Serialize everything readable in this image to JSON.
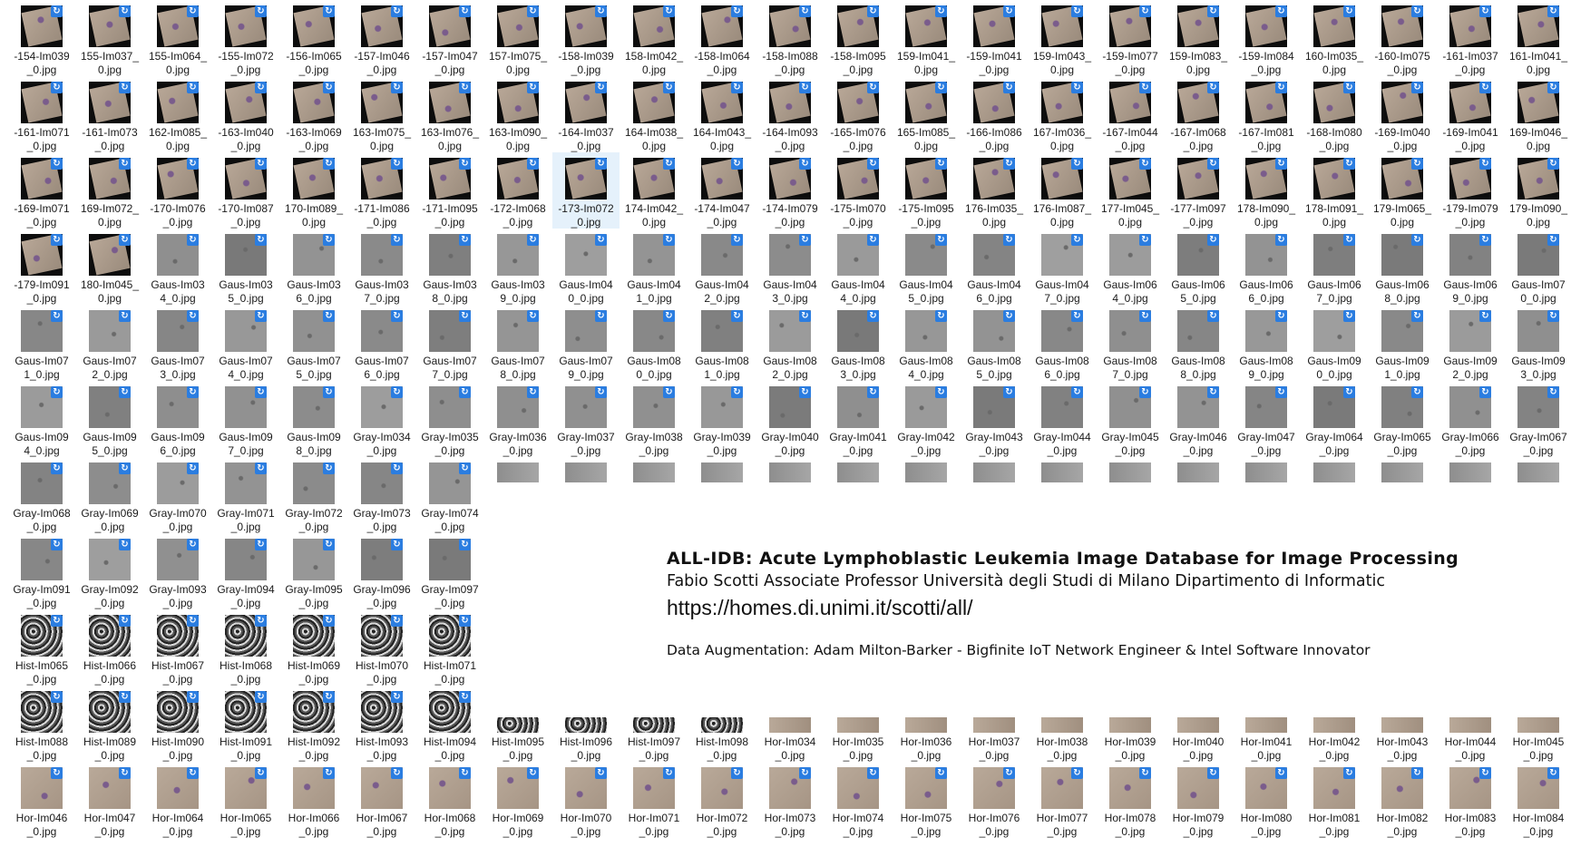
{
  "files": [
    {
      "label": "-154-Im039\n_0.jpg",
      "style": "rot"
    },
    {
      "label": "155-Im037_\n0.jpg",
      "style": "rot"
    },
    {
      "label": "155-Im064_\n0.jpg",
      "style": "rot"
    },
    {
      "label": "-155-Im072\n_0.jpg",
      "style": "rot"
    },
    {
      "label": "-156-Im065\n_0.jpg",
      "style": "rot"
    },
    {
      "label": "-157-Im046\n_0.jpg",
      "style": "rot"
    },
    {
      "label": "-157-Im047\n_0.jpg",
      "style": "rot"
    },
    {
      "label": "157-Im075_\n0.jpg",
      "style": "rot"
    },
    {
      "label": "-158-Im039\n_0.jpg",
      "style": "rot"
    },
    {
      "label": "158-Im042_\n0.jpg",
      "style": "rot"
    },
    {
      "label": "-158-Im064\n_0.jpg",
      "style": "rot"
    },
    {
      "label": "-158-Im088\n_0.jpg",
      "style": "rot"
    },
    {
      "label": "-158-Im095\n_0.jpg",
      "style": "rot"
    },
    {
      "label": "159-Im041_\n0.jpg",
      "style": "rot"
    },
    {
      "label": "-159-Im041\n_0.jpg",
      "style": "rot"
    },
    {
      "label": "159-Im043_\n0.jpg",
      "style": "rot"
    },
    {
      "label": "-159-Im077\n_0.jpg",
      "style": "rot"
    },
    {
      "label": "159-Im083_\n0.jpg",
      "style": "rot"
    },
    {
      "label": "-159-Im084\n_0.jpg",
      "style": "rot"
    },
    {
      "label": "160-Im035_\n0.jpg",
      "style": "rot"
    },
    {
      "label": "-160-Im075\n_0.jpg",
      "style": "rot"
    },
    {
      "label": "-161-Im037\n_0.jpg",
      "style": "rot"
    },
    {
      "label": "161-Im041_\n0.jpg",
      "style": "rot"
    },
    {
      "label": "-161-Im071\n_0.jpg",
      "style": "rot"
    },
    {
      "label": "-161-Im073\n_0.jpg",
      "style": "rot"
    },
    {
      "label": "162-Im085_\n0.jpg",
      "style": "rot"
    },
    {
      "label": "-163-Im040\n_0.jpg",
      "style": "rot"
    },
    {
      "label": "-163-Im069\n_0.jpg",
      "style": "rot"
    },
    {
      "label": "163-Im075_\n0.jpg",
      "style": "rot"
    },
    {
      "label": "163-Im076_\n0.jpg",
      "style": "rot"
    },
    {
      "label": "163-Im090_\n0.jpg",
      "style": "rot"
    },
    {
      "label": "-164-Im037\n_0.jpg",
      "style": "rot"
    },
    {
      "label": "164-Im038_\n0.jpg",
      "style": "rot"
    },
    {
      "label": "164-Im043_\n0.jpg",
      "style": "rot"
    },
    {
      "label": "-164-Im093\n_0.jpg",
      "style": "rot"
    },
    {
      "label": "-165-Im076\n_0.jpg",
      "style": "rot"
    },
    {
      "label": "165-Im085_\n0.jpg",
      "style": "rot"
    },
    {
      "label": "-166-Im086\n_0.jpg",
      "style": "rot"
    },
    {
      "label": "167-Im036_\n0.jpg",
      "style": "rot"
    },
    {
      "label": "-167-Im044\n_0.jpg",
      "style": "rot"
    },
    {
      "label": "-167-Im068\n_0.jpg",
      "style": "rot"
    },
    {
      "label": "-167-Im081\n_0.jpg",
      "style": "rot"
    },
    {
      "label": "-168-Im080\n_0.jpg",
      "style": "rot"
    },
    {
      "label": "-169-Im040\n_0.jpg",
      "style": "rot"
    },
    {
      "label": "-169-Im041\n_0.jpg",
      "style": "rot"
    },
    {
      "label": "169-Im046_\n0.jpg",
      "style": "rot"
    },
    {
      "label": "-169-Im071\n_0.jpg",
      "style": "rot"
    },
    {
      "label": "169-Im072_\n0.jpg",
      "style": "rot"
    },
    {
      "label": "-170-Im076\n_0.jpg",
      "style": "rot"
    },
    {
      "label": "-170-Im087\n_0.jpg",
      "style": "rot"
    },
    {
      "label": "170-Im089_\n0.jpg",
      "style": "rot"
    },
    {
      "label": "-171-Im086\n_0.jpg",
      "style": "rot"
    },
    {
      "label": "-171-Im095\n_0.jpg",
      "style": "rot"
    },
    {
      "label": "-172-Im068\n_0.jpg",
      "style": "rot"
    },
    {
      "label": "-173-Im072\n_0.jpg",
      "style": "rot",
      "selected": true
    },
    {
      "label": "174-Im042_\n0.jpg",
      "style": "rot"
    },
    {
      "label": "-174-Im047\n_0.jpg",
      "style": "rot"
    },
    {
      "label": "-174-Im079\n_0.jpg",
      "style": "rot"
    },
    {
      "label": "-175-Im070\n_0.jpg",
      "style": "rot"
    },
    {
      "label": "-175-Im095\n_0.jpg",
      "style": "rot"
    },
    {
      "label": "176-Im035_\n0.jpg",
      "style": "rot"
    },
    {
      "label": "176-Im087_\n0.jpg",
      "style": "rot"
    },
    {
      "label": "177-Im045_\n0.jpg",
      "style": "rot"
    },
    {
      "label": "-177-Im097\n_0.jpg",
      "style": "rot"
    },
    {
      "label": "178-Im090_\n0.jpg",
      "style": "rot"
    },
    {
      "label": "178-Im091_\n0.jpg",
      "style": "rot"
    },
    {
      "label": "179-Im065_\n0.jpg",
      "style": "rot"
    },
    {
      "label": "-179-Im079\n_0.jpg",
      "style": "rot"
    },
    {
      "label": "179-Im090_\n0.jpg",
      "style": "rot"
    },
    {
      "label": "-179-Im091\n_0.jpg",
      "style": "rot"
    },
    {
      "label": "180-Im045_\n0.jpg",
      "style": "rot"
    },
    {
      "label": "Gaus-Im03\n4_0.jpg",
      "style": "gray"
    },
    {
      "label": "Gaus-Im03\n5_0.jpg",
      "style": "gray"
    },
    {
      "label": "Gaus-Im03\n6_0.jpg",
      "style": "gray"
    },
    {
      "label": "Gaus-Im03\n7_0.jpg",
      "style": "gray"
    },
    {
      "label": "Gaus-Im03\n8_0.jpg",
      "style": "gray"
    },
    {
      "label": "Gaus-Im03\n9_0.jpg",
      "style": "gray"
    },
    {
      "label": "Gaus-Im04\n0_0.jpg",
      "style": "gray"
    },
    {
      "label": "Gaus-Im04\n1_0.jpg",
      "style": "gray"
    },
    {
      "label": "Gaus-Im04\n2_0.jpg",
      "style": "gray"
    },
    {
      "label": "Gaus-Im04\n3_0.jpg",
      "style": "gray"
    },
    {
      "label": "Gaus-Im04\n4_0.jpg",
      "style": "gray"
    },
    {
      "label": "Gaus-Im04\n5_0.jpg",
      "style": "gray"
    },
    {
      "label": "Gaus-Im04\n6_0.jpg",
      "style": "gray"
    },
    {
      "label": "Gaus-Im04\n7_0.jpg",
      "style": "gray"
    },
    {
      "label": "Gaus-Im06\n4_0.jpg",
      "style": "gray"
    },
    {
      "label": "Gaus-Im06\n5_0.jpg",
      "style": "gray"
    },
    {
      "label": "Gaus-Im06\n6_0.jpg",
      "style": "gray"
    },
    {
      "label": "Gaus-Im06\n7_0.jpg",
      "style": "gray"
    },
    {
      "label": "Gaus-Im06\n8_0.jpg",
      "style": "gray"
    },
    {
      "label": "Gaus-Im06\n9_0.jpg",
      "style": "gray"
    },
    {
      "label": "Gaus-Im07\n0_0.jpg",
      "style": "gray"
    },
    {
      "label": "Gaus-Im07\n1_0.jpg",
      "style": "gray"
    },
    {
      "label": "Gaus-Im07\n2_0.jpg",
      "style": "gray"
    },
    {
      "label": "Gaus-Im07\n3_0.jpg",
      "style": "gray"
    },
    {
      "label": "Gaus-Im07\n4_0.jpg",
      "style": "gray"
    },
    {
      "label": "Gaus-Im07\n5_0.jpg",
      "style": "gray"
    },
    {
      "label": "Gaus-Im07\n6_0.jpg",
      "style": "gray"
    },
    {
      "label": "Gaus-Im07\n7_0.jpg",
      "style": "gray"
    },
    {
      "label": "Gaus-Im07\n8_0.jpg",
      "style": "gray"
    },
    {
      "label": "Gaus-Im07\n9_0.jpg",
      "style": "gray"
    },
    {
      "label": "Gaus-Im08\n0_0.jpg",
      "style": "gray"
    },
    {
      "label": "Gaus-Im08\n1_0.jpg",
      "style": "gray"
    },
    {
      "label": "Gaus-Im08\n2_0.jpg",
      "style": "gray"
    },
    {
      "label": "Gaus-Im08\n3_0.jpg",
      "style": "gray"
    },
    {
      "label": "Gaus-Im08\n4_0.jpg",
      "style": "gray"
    },
    {
      "label": "Gaus-Im08\n5_0.jpg",
      "style": "gray"
    },
    {
      "label": "Gaus-Im08\n6_0.jpg",
      "style": "gray"
    },
    {
      "label": "Gaus-Im08\n7_0.jpg",
      "style": "gray"
    },
    {
      "label": "Gaus-Im08\n8_0.jpg",
      "style": "gray"
    },
    {
      "label": "Gaus-Im08\n9_0.jpg",
      "style": "gray"
    },
    {
      "label": "Gaus-Im09\n0_0.jpg",
      "style": "gray"
    },
    {
      "label": "Gaus-Im09\n1_0.jpg",
      "style": "gray"
    },
    {
      "label": "Gaus-Im09\n2_0.jpg",
      "style": "gray"
    },
    {
      "label": "Gaus-Im09\n3_0.jpg",
      "style": "gray"
    },
    {
      "label": "Gaus-Im09\n4_0.jpg",
      "style": "gray"
    },
    {
      "label": "Gaus-Im09\n5_0.jpg",
      "style": "gray"
    },
    {
      "label": "Gaus-Im09\n6_0.jpg",
      "style": "gray"
    },
    {
      "label": "Gaus-Im09\n7_0.jpg",
      "style": "gray"
    },
    {
      "label": "Gaus-Im09\n8_0.jpg",
      "style": "gray"
    },
    {
      "label": "Gray-Im034\n_0.jpg",
      "style": "gray"
    },
    {
      "label": "Gray-Im035\n_0.jpg",
      "style": "gray"
    },
    {
      "label": "Gray-Im036\n_0.jpg",
      "style": "gray"
    },
    {
      "label": "Gray-Im037\n_0.jpg",
      "style": "gray"
    },
    {
      "label": "Gray-Im038\n_0.jpg",
      "style": "gray"
    },
    {
      "label": "Gray-Im039\n_0.jpg",
      "style": "gray"
    },
    {
      "label": "Gray-Im040\n_0.jpg",
      "style": "gray"
    },
    {
      "label": "Gray-Im041\n_0.jpg",
      "style": "gray"
    },
    {
      "label": "Gray-Im042\n_0.jpg",
      "style": "gray"
    },
    {
      "label": "Gray-Im043\n_0.jpg",
      "style": "gray"
    },
    {
      "label": "Gray-Im044\n_0.jpg",
      "style": "gray"
    },
    {
      "label": "Gray-Im045\n_0.jpg",
      "style": "gray"
    },
    {
      "label": "Gray-Im046\n_0.jpg",
      "style": "gray"
    },
    {
      "label": "Gray-Im047\n_0.jpg",
      "style": "gray"
    },
    {
      "label": "Gray-Im064\n_0.jpg",
      "style": "gray"
    },
    {
      "label": "Gray-Im065\n_0.jpg",
      "style": "gray"
    },
    {
      "label": "Gray-Im066\n_0.jpg",
      "style": "gray"
    },
    {
      "label": "Gray-Im067\n_0.jpg",
      "style": "gray"
    },
    {
      "label": "Gray-Im068\n_0.jpg",
      "style": "gray"
    },
    {
      "label": "Gray-Im069\n_0.jpg",
      "style": "gray"
    },
    {
      "label": "Gray-Im070\n_0.jpg",
      "style": "gray"
    },
    {
      "label": "Gray-Im071\n_0.jpg",
      "style": "gray"
    },
    {
      "label": "Gray-Im072\n_0.jpg",
      "style": "gray"
    },
    {
      "label": "Gray-Im073\n_0.jpg",
      "style": "gray"
    },
    {
      "label": "Gray-Im074\n_0.jpg",
      "style": "gray"
    },
    {
      "label": "",
      "style": "short"
    },
    {
      "label": "",
      "style": "short"
    },
    {
      "label": "",
      "style": "short"
    },
    {
      "label": "",
      "style": "short"
    },
    {
      "label": "",
      "style": "short"
    },
    {
      "label": "",
      "style": "short"
    },
    {
      "label": "",
      "style": "short"
    },
    {
      "label": "",
      "style": "short"
    },
    {
      "label": "",
      "style": "short"
    },
    {
      "label": "",
      "style": "short"
    },
    {
      "label": "",
      "style": "short"
    },
    {
      "label": "",
      "style": "short"
    },
    {
      "label": "",
      "style": "short"
    },
    {
      "label": "",
      "style": "short"
    },
    {
      "label": "",
      "style": "short"
    },
    {
      "label": "",
      "style": "short"
    },
    {
      "label": "Gray-Im091\n_0.jpg",
      "style": "gray"
    },
    {
      "label": "Gray-Im092\n_0.jpg",
      "style": "gray"
    },
    {
      "label": "Gray-Im093\n_0.jpg",
      "style": "gray"
    },
    {
      "label": "Gray-Im094\n_0.jpg",
      "style": "gray"
    },
    {
      "label": "Gray-Im095\n_0.jpg",
      "style": "gray"
    },
    {
      "label": "Gray-Im096\n_0.jpg",
      "style": "gray"
    },
    {
      "label": "Gray-Im097\n_0.jpg",
      "style": "gray"
    },
    {
      "label": "Hist-Im065\n_0.jpg",
      "style": "hist"
    },
    {
      "label": "Hist-Im066\n_0.jpg",
      "style": "hist"
    },
    {
      "label": "Hist-Im067\n_0.jpg",
      "style": "hist"
    },
    {
      "label": "Hist-Im068\n_0.jpg",
      "style": "hist"
    },
    {
      "label": "Hist-Im069\n_0.jpg",
      "style": "hist"
    },
    {
      "label": "Hist-Im070\n_0.jpg",
      "style": "hist"
    },
    {
      "label": "Hist-Im071\n_0.jpg",
      "style": "hist"
    },
    {
      "label": "Hist-Im088\n_0.jpg",
      "style": "hist"
    },
    {
      "label": "Hist-Im089\n_0.jpg",
      "style": "hist"
    },
    {
      "label": "Hist-Im090\n_0.jpg",
      "style": "hist"
    },
    {
      "label": "Hist-Im091\n_0.jpg",
      "style": "hist"
    },
    {
      "label": "Hist-Im092\n_0.jpg",
      "style": "hist"
    },
    {
      "label": "Hist-Im093\n_0.jpg",
      "style": "hist"
    },
    {
      "label": "Hist-Im094\n_0.jpg",
      "style": "hist"
    },
    {
      "label": "Hist-Im095\n_0.jpg",
      "style": "histwide"
    },
    {
      "label": "Hist-Im096\n_0.jpg",
      "style": "histwide"
    },
    {
      "label": "Hist-Im097\n_0.jpg",
      "style": "histwide"
    },
    {
      "label": "Hist-Im098\n_0.jpg",
      "style": "histwide"
    },
    {
      "label": "Hor-Im034\n_0.jpg",
      "style": "horwide"
    },
    {
      "label": "Hor-Im035\n_0.jpg",
      "style": "horwide"
    },
    {
      "label": "Hor-Im036\n_0.jpg",
      "style": "horwide"
    },
    {
      "label": "Hor-Im037\n_0.jpg",
      "style": "horwide"
    },
    {
      "label": "Hor-Im038\n_0.jpg",
      "style": "horwide"
    },
    {
      "label": "Hor-Im039\n_0.jpg",
      "style": "horwide"
    },
    {
      "label": "Hor-Im040\n_0.jpg",
      "style": "horwide"
    },
    {
      "label": "Hor-Im041\n_0.jpg",
      "style": "horwide"
    },
    {
      "label": "Hor-Im042\n_0.jpg",
      "style": "horwide"
    },
    {
      "label": "Hor-Im043\n_0.jpg",
      "style": "horwide"
    },
    {
      "label": "Hor-Im044\n_0.jpg",
      "style": "horwide"
    },
    {
      "label": "Hor-Im045\n_0.jpg",
      "style": "horwide"
    },
    {
      "label": "Hor-Im046\n_0.jpg",
      "style": "hor"
    },
    {
      "label": "Hor-Im047\n_0.jpg",
      "style": "hor"
    },
    {
      "label": "Hor-Im064\n_0.jpg",
      "style": "hor"
    },
    {
      "label": "Hor-Im065\n_0.jpg",
      "style": "hor"
    },
    {
      "label": "Hor-Im066\n_0.jpg",
      "style": "hor"
    },
    {
      "label": "Hor-Im067\n_0.jpg",
      "style": "hor"
    },
    {
      "label": "Hor-Im068\n_0.jpg",
      "style": "hor"
    },
    {
      "label": "Hor-Im069\n_0.jpg",
      "style": "hor"
    },
    {
      "label": "Hor-Im070\n_0.jpg",
      "style": "hor"
    },
    {
      "label": "Hor-Im071\n_0.jpg",
      "style": "hor"
    },
    {
      "label": "Hor-Im072\n_0.jpg",
      "style": "hor"
    },
    {
      "label": "Hor-Im073\n_0.jpg",
      "style": "hor"
    },
    {
      "label": "Hor-Im074\n_0.jpg",
      "style": "hor"
    },
    {
      "label": "Hor-Im075\n_0.jpg",
      "style": "hor"
    },
    {
      "label": "Hor-Im076\n_0.jpg",
      "style": "hor"
    },
    {
      "label": "Hor-Im077\n_0.jpg",
      "style": "hor"
    },
    {
      "label": "Hor-Im078\n_0.jpg",
      "style": "hor"
    },
    {
      "label": "Hor-Im079\n_0.jpg",
      "style": "hor"
    },
    {
      "label": "Hor-Im080\n_0.jpg",
      "style": "hor"
    },
    {
      "label": "Hor-Im081\n_0.jpg",
      "style": "hor"
    },
    {
      "label": "Hor-Im082\n_0.jpg",
      "style": "hor"
    },
    {
      "label": "Hor-Im083\n_0.jpg",
      "style": "hor"
    },
    {
      "label": "Hor-Im084\n_0.jpg",
      "style": "hor"
    }
  ],
  "watermark": {
    "title": "ALL-IDB: Acute Lymphoblastic Leukemia Image Database for Image Processing",
    "author": "Fabio Scotti Associate Professor Università degli Studi di Milano Dipartimento di Informatic",
    "url": "https://homes.di.unimi.it/scotti/all/",
    "augmentation": "Data Augmentation: Adam Milton-Barker - Bigfinite IoT Network Engineer & Intel Software Innovator"
  },
  "badge_icon": "cloud-sync-icon",
  "colors": {
    "selection": "#e5f1fb",
    "badge": "#2b7de0"
  }
}
